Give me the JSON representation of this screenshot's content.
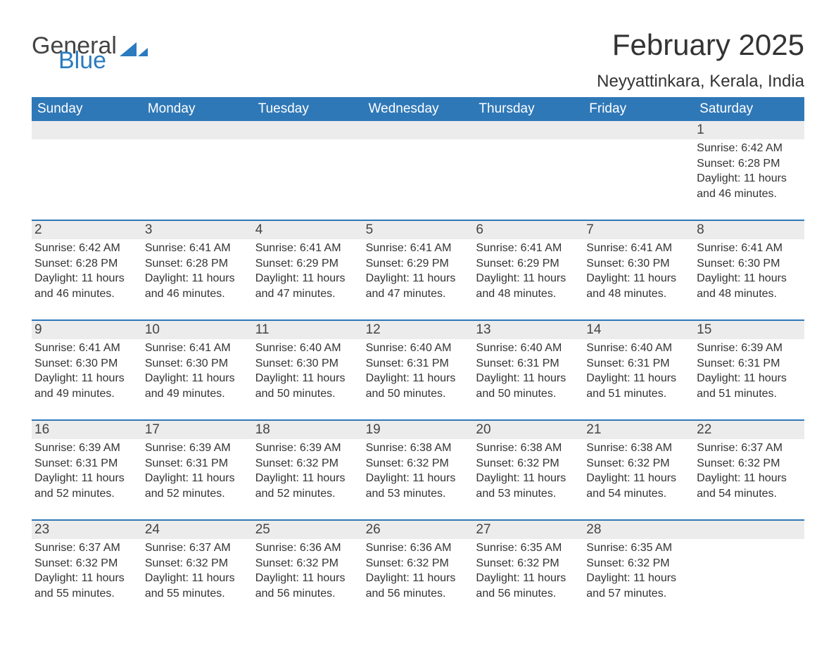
{
  "logo": {
    "text1": "General",
    "text2": "Blue"
  },
  "title": "February 2025",
  "location": "Neyyattinkara, Kerala, India",
  "header_bg": "#2f78b7",
  "header_fg": "#ffffff",
  "daynum_bg": "#ececec",
  "divider_color": "#2f78b7",
  "weekdays": [
    "Sunday",
    "Monday",
    "Tuesday",
    "Wednesday",
    "Thursday",
    "Friday",
    "Saturday"
  ],
  "weeks": [
    [
      null,
      null,
      null,
      null,
      null,
      null,
      {
        "n": "1",
        "sunrise": "6:42 AM",
        "sunset": "6:28 PM",
        "daylight": "11 hours and 46 minutes."
      }
    ],
    [
      {
        "n": "2",
        "sunrise": "6:42 AM",
        "sunset": "6:28 PM",
        "daylight": "11 hours and 46 minutes."
      },
      {
        "n": "3",
        "sunrise": "6:41 AM",
        "sunset": "6:28 PM",
        "daylight": "11 hours and 46 minutes."
      },
      {
        "n": "4",
        "sunrise": "6:41 AM",
        "sunset": "6:29 PM",
        "daylight": "11 hours and 47 minutes."
      },
      {
        "n": "5",
        "sunrise": "6:41 AM",
        "sunset": "6:29 PM",
        "daylight": "11 hours and 47 minutes."
      },
      {
        "n": "6",
        "sunrise": "6:41 AM",
        "sunset": "6:29 PM",
        "daylight": "11 hours and 48 minutes."
      },
      {
        "n": "7",
        "sunrise": "6:41 AM",
        "sunset": "6:30 PM",
        "daylight": "11 hours and 48 minutes."
      },
      {
        "n": "8",
        "sunrise": "6:41 AM",
        "sunset": "6:30 PM",
        "daylight": "11 hours and 48 minutes."
      }
    ],
    [
      {
        "n": "9",
        "sunrise": "6:41 AM",
        "sunset": "6:30 PM",
        "daylight": "11 hours and 49 minutes."
      },
      {
        "n": "10",
        "sunrise": "6:41 AM",
        "sunset": "6:30 PM",
        "daylight": "11 hours and 49 minutes."
      },
      {
        "n": "11",
        "sunrise": "6:40 AM",
        "sunset": "6:30 PM",
        "daylight": "11 hours and 50 minutes."
      },
      {
        "n": "12",
        "sunrise": "6:40 AM",
        "sunset": "6:31 PM",
        "daylight": "11 hours and 50 minutes."
      },
      {
        "n": "13",
        "sunrise": "6:40 AM",
        "sunset": "6:31 PM",
        "daylight": "11 hours and 50 minutes."
      },
      {
        "n": "14",
        "sunrise": "6:40 AM",
        "sunset": "6:31 PM",
        "daylight": "11 hours and 51 minutes."
      },
      {
        "n": "15",
        "sunrise": "6:39 AM",
        "sunset": "6:31 PM",
        "daylight": "11 hours and 51 minutes."
      }
    ],
    [
      {
        "n": "16",
        "sunrise": "6:39 AM",
        "sunset": "6:31 PM",
        "daylight": "11 hours and 52 minutes."
      },
      {
        "n": "17",
        "sunrise": "6:39 AM",
        "sunset": "6:31 PM",
        "daylight": "11 hours and 52 minutes."
      },
      {
        "n": "18",
        "sunrise": "6:39 AM",
        "sunset": "6:32 PM",
        "daylight": "11 hours and 52 minutes."
      },
      {
        "n": "19",
        "sunrise": "6:38 AM",
        "sunset": "6:32 PM",
        "daylight": "11 hours and 53 minutes."
      },
      {
        "n": "20",
        "sunrise": "6:38 AM",
        "sunset": "6:32 PM",
        "daylight": "11 hours and 53 minutes."
      },
      {
        "n": "21",
        "sunrise": "6:38 AM",
        "sunset": "6:32 PM",
        "daylight": "11 hours and 54 minutes."
      },
      {
        "n": "22",
        "sunrise": "6:37 AM",
        "sunset": "6:32 PM",
        "daylight": "11 hours and 54 minutes."
      }
    ],
    [
      {
        "n": "23",
        "sunrise": "6:37 AM",
        "sunset": "6:32 PM",
        "daylight": "11 hours and 55 minutes."
      },
      {
        "n": "24",
        "sunrise": "6:37 AM",
        "sunset": "6:32 PM",
        "daylight": "11 hours and 55 minutes."
      },
      {
        "n": "25",
        "sunrise": "6:36 AM",
        "sunset": "6:32 PM",
        "daylight": "11 hours and 56 minutes."
      },
      {
        "n": "26",
        "sunrise": "6:36 AM",
        "sunset": "6:32 PM",
        "daylight": "11 hours and 56 minutes."
      },
      {
        "n": "27",
        "sunrise": "6:35 AM",
        "sunset": "6:32 PM",
        "daylight": "11 hours and 56 minutes."
      },
      {
        "n": "28",
        "sunrise": "6:35 AM",
        "sunset": "6:32 PM",
        "daylight": "11 hours and 57 minutes."
      },
      null
    ]
  ],
  "labels": {
    "sunrise": "Sunrise:",
    "sunset": "Sunset:",
    "daylight": "Daylight:"
  }
}
